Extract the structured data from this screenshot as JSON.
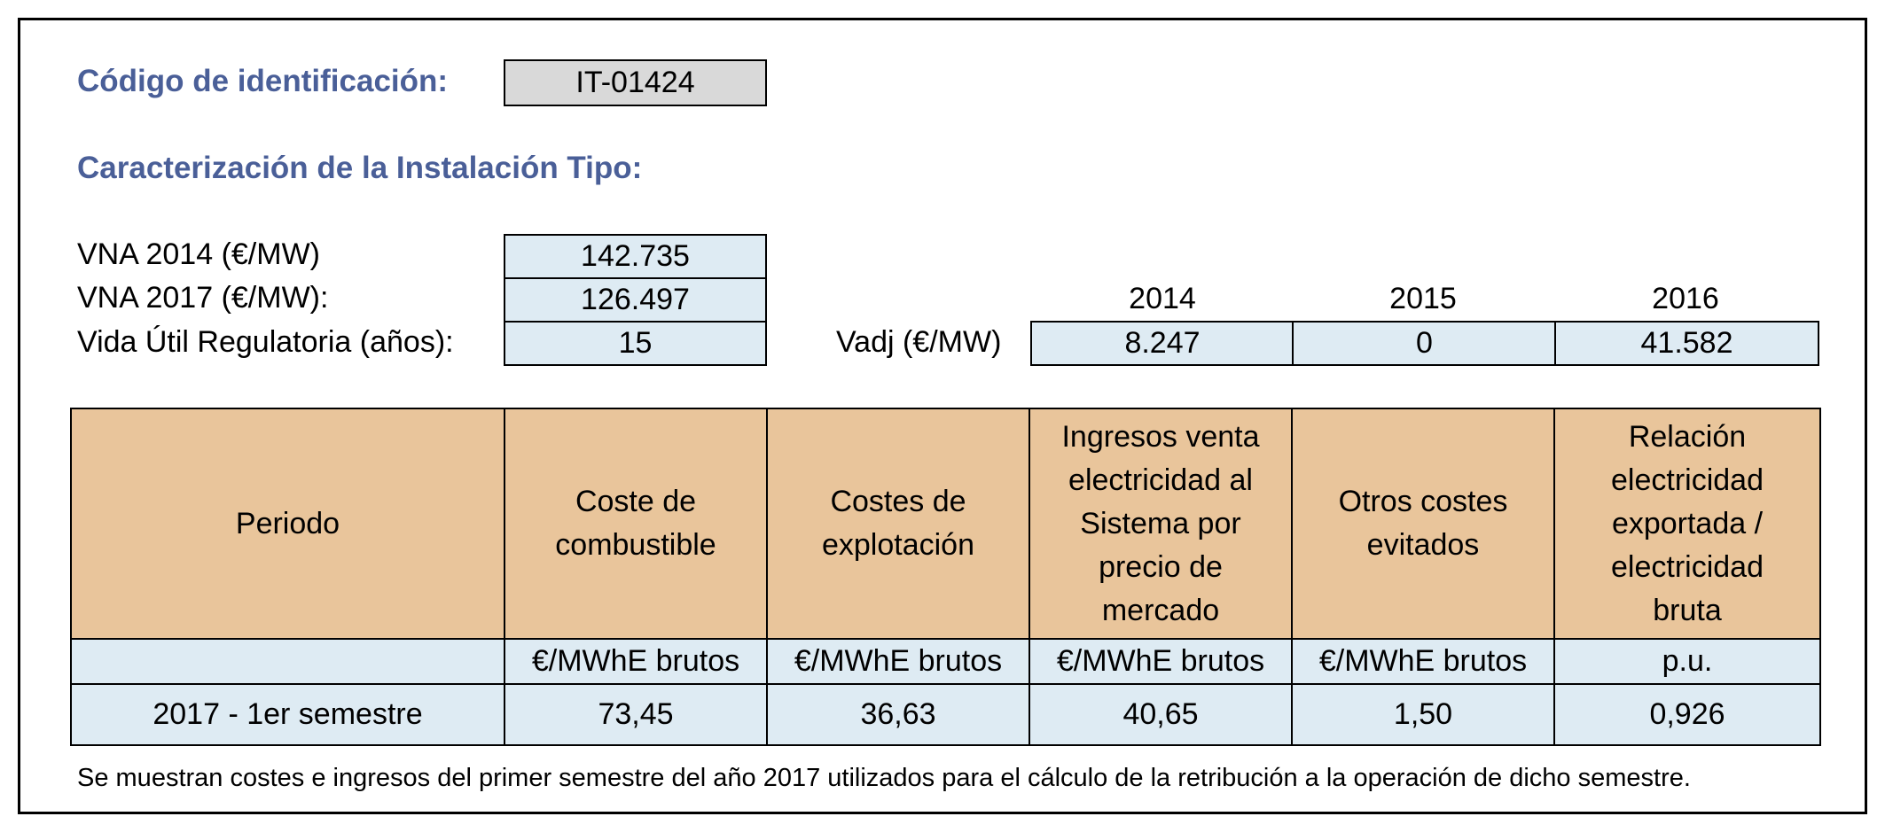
{
  "identification": {
    "label": "Código de identificación:",
    "code": "IT-01424"
  },
  "section_title": "Caracterización de la Instalación Tipo:",
  "parameters": {
    "vna_2014_label": "VNA 2014 (€/MW)",
    "vna_2014_value": "142.735",
    "vna_2017_label": "VNA 2017 (€/MW):",
    "vna_2017_value": "126.497",
    "vida_label": "Vida Útil Regulatoria (años):",
    "vida_value": "15"
  },
  "vadj": {
    "label": "Vadj (€/MW)",
    "years": [
      "2014",
      "2015",
      "2016"
    ],
    "values": [
      "8.247",
      "0",
      "41.582"
    ]
  },
  "table": {
    "headers": [
      "Periodo",
      "Coste de combustible",
      "Costes de explotación",
      "Ingresos venta electricidad al Sistema por precio de mercado",
      "Otros costes evitados",
      "Relación electricidad exportada / electricidad bruta"
    ],
    "units": [
      "",
      "€/MWhE brutos",
      "€/MWhE brutos",
      "€/MWhE brutos",
      "€/MWhE brutos",
      "p.u."
    ],
    "rows": [
      [
        "2017 - 1er semestre",
        "73,45",
        "36,63",
        "40,65",
        "1,50",
        "0,926"
      ]
    ]
  },
  "footnote": "Se muestran costes e ingresos del primer semestre del año 2017 utilizados para el cálculo de la retribución a la operación de dicho semestre.",
  "colors": {
    "heading": "#4a5f98",
    "header_fill": "#e9c59b",
    "value_fill": "#deebf3",
    "code_fill": "#d9d9d9"
  }
}
